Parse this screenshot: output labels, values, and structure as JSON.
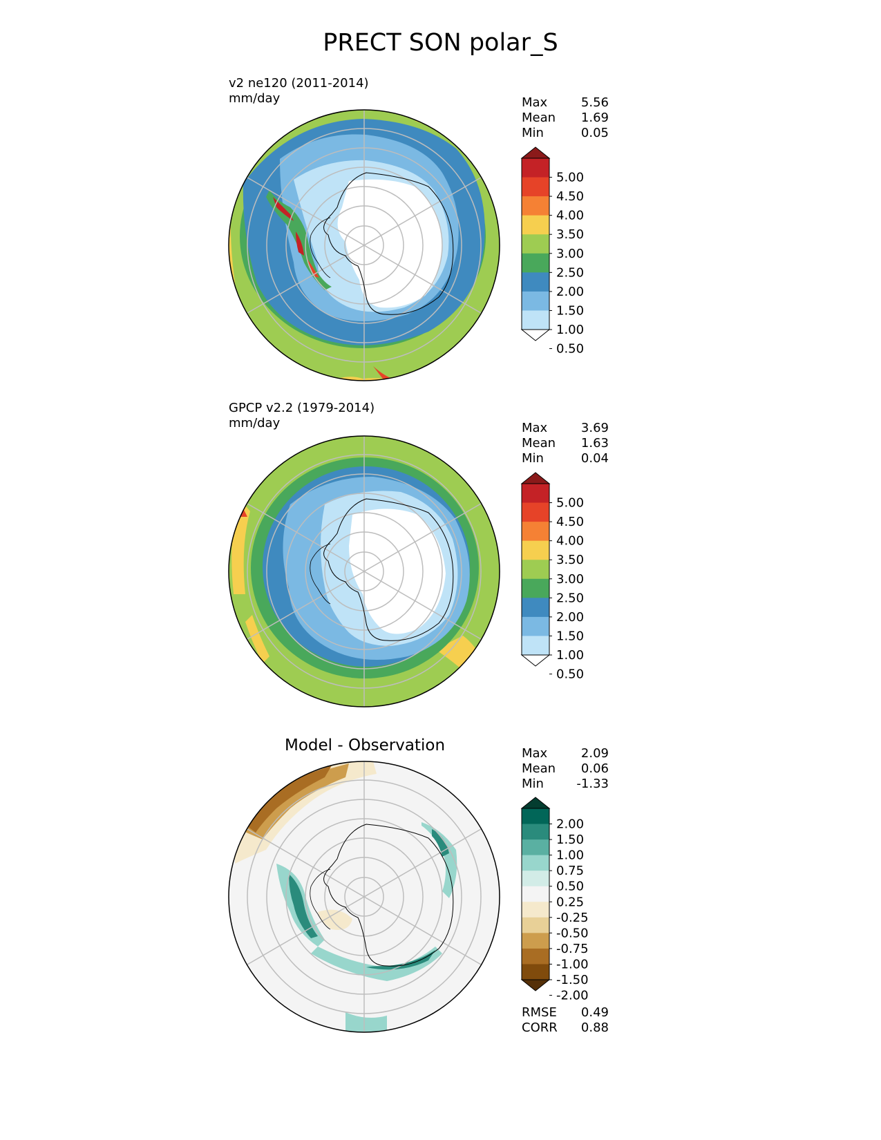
{
  "title": "PRECT SON polar_S",
  "panels": [
    {
      "id": "model",
      "subtitle": [
        "v2 ne120 (2011-2014)",
        "mm/day"
      ],
      "stats": [
        {
          "label": "Max",
          "value": "5.56"
        },
        {
          "label": "Mean",
          "value": "1.69"
        },
        {
          "label": "Min",
          "value": "0.05"
        }
      ]
    },
    {
      "id": "obs",
      "subtitle": [
        "GPCP v2.2 (1979-2014)",
        "mm/day"
      ],
      "stats": [
        {
          "label": "Max",
          "value": "3.69"
        },
        {
          "label": "Mean",
          "value": "1.63"
        },
        {
          "label": "Min",
          "value": "0.04"
        }
      ]
    },
    {
      "id": "diff",
      "title": "Model - Observation",
      "stats": [
        {
          "label": "Max",
          "value": "2.09"
        },
        {
          "label": "Mean",
          "value": "0.06"
        },
        {
          "label": "Min",
          "value": "-1.33"
        }
      ],
      "metrics": [
        {
          "label": "RMSE",
          "value": "0.49"
        },
        {
          "label": "CORR",
          "value": "0.88"
        }
      ]
    }
  ],
  "colorbars": {
    "precip": {
      "ticks": [
        "5.00",
        "4.50",
        "4.00",
        "3.50",
        "3.00",
        "2.50",
        "2.00",
        "1.50",
        "1.00",
        "0.50"
      ],
      "colors_top_to_bottom": [
        "#8b1a1a",
        "#c42226",
        "#e64328",
        "#f58134",
        "#f6cf4f",
        "#9ecc52",
        "#49a85b",
        "#3f8abf",
        "#7bb9e3",
        "#bfe3f7",
        "#ffffff"
      ]
    },
    "diff": {
      "ticks": [
        "2.00",
        "1.50",
        "1.00",
        "0.75",
        "0.50",
        "0.25",
        "-0.25",
        "-0.50",
        "-0.75",
        "-1.00",
        "-1.50",
        "-2.00"
      ],
      "colors_top_to_bottom": [
        "#043d30",
        "#016658",
        "#2a8b7c",
        "#5ab0a2",
        "#98d6cc",
        "#d2ece7",
        "#f4f4f4",
        "#f5e9cc",
        "#e8d097",
        "#cd9d4d",
        "#a96d23",
        "#804b0c",
        "#553008"
      ]
    }
  }
}
